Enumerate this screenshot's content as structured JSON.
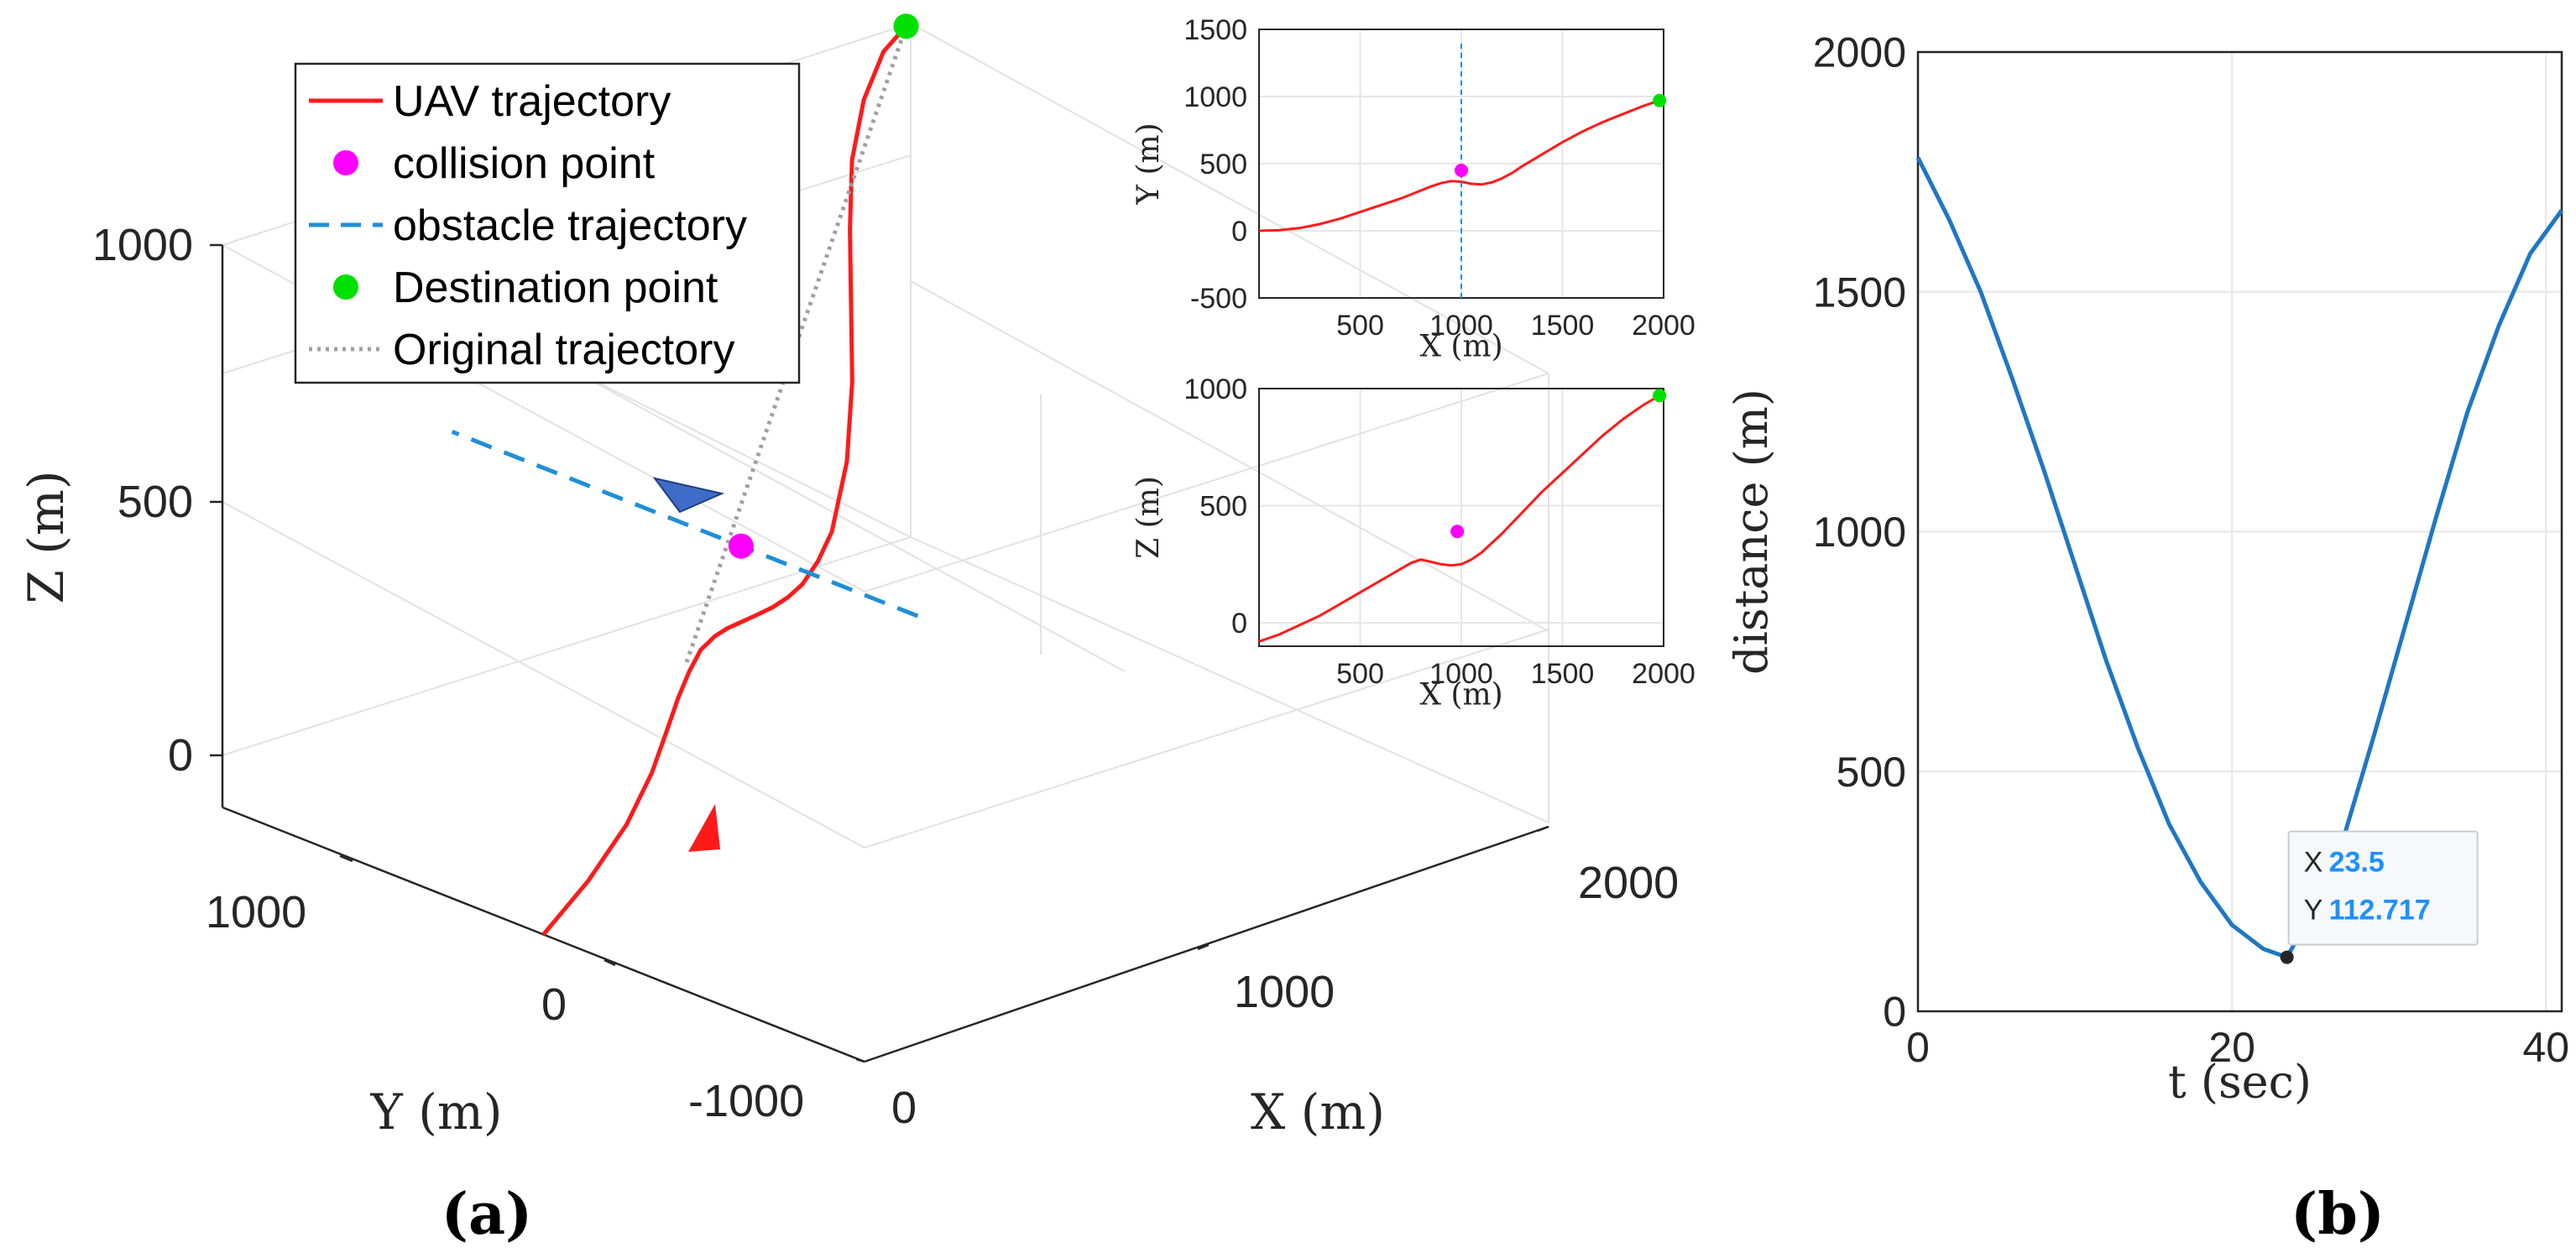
{
  "panel_labels": {
    "a": "(a)",
    "b": "(b)"
  },
  "legend": [
    {
      "label": "UAV trajectory",
      "style": "solid",
      "color": "#ff1a1a"
    },
    {
      "label": "collision point",
      "style": "marker",
      "color": "#ff00ff"
    },
    {
      "label": "obstacle trajectory",
      "style": "dashed",
      "color": "#1f8fd6"
    },
    {
      "label": "Destination point",
      "style": "marker",
      "color": "#00e000"
    },
    {
      "label": "Original trajectory",
      "style": "dotted",
      "color": "#a0a0a0"
    }
  ],
  "colors": {
    "uav": "#ff1a1a",
    "collision": "#ff00ff",
    "obstacle": "#1f8fd6",
    "destination": "#00e000",
    "original": "#a0a0a0",
    "distance": "#1f77c4",
    "arrow_obstacle": "#3f6cc6"
  },
  "chart_data": [
    {
      "id": "3d",
      "type": "line",
      "title": "",
      "xlabel": "X (m)",
      "ylabel": "Y (m)",
      "zlabel": "Z (m)",
      "x_ticks": [
        "0",
        "1000",
        "2000"
      ],
      "y_ticks": [
        "-1000",
        "0",
        "1000"
      ],
      "z_ticks": [
        "0",
        "500",
        "1000"
      ],
      "series": [
        {
          "name": "UAV trajectory",
          "x": [
            0,
            150,
            300,
            420,
            520,
            600,
            680,
            760,
            830,
            880,
            930,
            980,
            1020,
            1060,
            1100,
            1150,
            1200,
            1300,
            1400,
            1500,
            1600,
            1700,
            1800,
            1900,
            1980
          ],
          "y": [
            0,
            20,
            60,
            110,
            170,
            220,
            270,
            320,
            350,
            365,
            372,
            375,
            372,
            368,
            366,
            370,
            380,
            440,
            530,
            640,
            750,
            850,
            920,
            965,
            980
          ],
          "z": [
            0,
            60,
            120,
            175,
            215,
            245,
            265,
            275,
            278,
            278,
            278,
            280,
            285,
            295,
            310,
            340,
            380,
            470,
            570,
            660,
            750,
            830,
            900,
            955,
            980
          ]
        },
        {
          "name": "Original trajectory",
          "x": [
            700,
            1980
          ],
          "y": [
            300,
            980
          ],
          "z": [
            270,
            980
          ]
        },
        {
          "name": "obstacle trajectory",
          "x": [
            1000,
            1000
          ],
          "y": [
            -100,
            1350
          ],
          "z": [
            380,
            380
          ]
        }
      ],
      "points": [
        {
          "name": "collision point",
          "x": 1000,
          "y": 450,
          "z": 380
        },
        {
          "name": "Destination point",
          "x": 1980,
          "y": 980,
          "z": 980
        }
      ]
    },
    {
      "id": "xy",
      "type": "line",
      "xlabel": "X (m)",
      "ylabel": "Y (m)",
      "xlim": [
        0,
        2000
      ],
      "ylim": [
        -500,
        1500
      ],
      "x_ticks": [
        "500",
        "1000",
        "1500",
        "2000"
      ],
      "y_ticks": [
        "-500",
        "0",
        "500",
        "1000",
        "1500"
      ],
      "series": [
        {
          "name": "UAV trajectory",
          "x": [
            0,
            100,
            200,
            300,
            400,
            500,
            600,
            700,
            800,
            850,
            900,
            950,
            1000,
            1050,
            1100,
            1150,
            1200,
            1250,
            1300,
            1400,
            1500,
            1600,
            1700,
            1800,
            1900,
            1980
          ],
          "y": [
            0,
            5,
            20,
            50,
            90,
            140,
            190,
            240,
            300,
            330,
            355,
            370,
            365,
            350,
            345,
            360,
            390,
            430,
            480,
            570,
            660,
            740,
            810,
            870,
            930,
            970
          ]
        },
        {
          "name": "obstacle trajectory",
          "x": [
            1000,
            1000
          ],
          "y": [
            -500,
            1400
          ]
        }
      ],
      "points": [
        {
          "name": "collision point",
          "x": 1000,
          "y": 450
        },
        {
          "name": "Destination point",
          "x": 1980,
          "y": 970
        }
      ]
    },
    {
      "id": "xz",
      "type": "line",
      "xlabel": "X (m)",
      "ylabel": "Z (m)",
      "xlim": [
        0,
        2000
      ],
      "ylim": [
        -100,
        1000
      ],
      "x_ticks": [
        "500",
        "1000",
        "1500",
        "2000"
      ],
      "y_ticks": [
        "0",
        "500",
        "1000"
      ],
      "series": [
        {
          "name": "UAV trajectory",
          "x": [
            0,
            100,
            200,
            300,
            400,
            500,
            600,
            700,
            750,
            800,
            850,
            900,
            950,
            1000,
            1050,
            1100,
            1200,
            1300,
            1400,
            1500,
            1600,
            1700,
            1800,
            1900,
            1980
          ],
          "y": [
            -80,
            -50,
            -10,
            30,
            80,
            130,
            180,
            230,
            255,
            270,
            260,
            250,
            245,
            250,
            270,
            300,
            380,
            470,
            560,
            640,
            720,
            800,
            870,
            930,
            970
          ]
        }
      ],
      "points": [
        {
          "name": "collision point",
          "x": 980,
          "y": 390
        },
        {
          "name": "Destination point",
          "x": 1980,
          "y": 970
        }
      ]
    },
    {
      "id": "distance",
      "type": "line",
      "xlabel": "t (sec)",
      "ylabel": "distance (m)",
      "xlim": [
        0,
        41
      ],
      "ylim": [
        0,
        2000
      ],
      "x_ticks": [
        "0",
        "20",
        "40"
      ],
      "y_ticks": [
        "0",
        "500",
        "1000",
        "1500",
        "2000"
      ],
      "series": [
        {
          "name": "distance",
          "x": [
            0,
            2,
            4,
            6,
            8,
            10,
            12,
            14,
            16,
            18,
            20,
            22,
            23.5,
            25,
            27,
            29,
            31,
            33,
            35,
            37,
            39,
            41
          ],
          "y": [
            1780,
            1650,
            1500,
            1320,
            1130,
            930,
            730,
            550,
            390,
            270,
            180,
            130,
            112.717,
            200,
            350,
            570,
            800,
            1030,
            1250,
            1430,
            1580,
            1670
          ]
        }
      ],
      "datatip": {
        "x_label": "X",
        "x_value": "23.5",
        "y_label": "Y",
        "y_value": "112.717",
        "x": 23.5,
        "y": 112.717
      }
    }
  ]
}
